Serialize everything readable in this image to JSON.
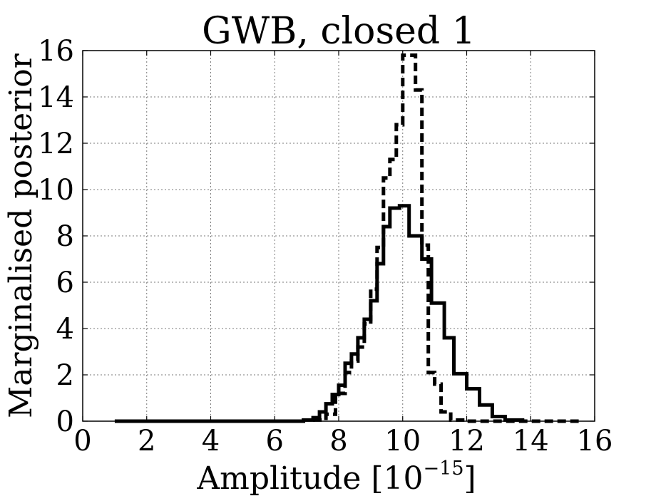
{
  "chart_data": {
    "type": "line",
    "title": "GWB, closed 1",
    "xlabel": "Amplitude [10",
    "xlabel_exponent": "−15",
    "xlabel_close": "]",
    "ylabel": "Marginalised posterior",
    "xlim": [
      0,
      16
    ],
    "ylim": [
      0,
      16
    ],
    "grid": true,
    "xticks": [
      0,
      2,
      4,
      6,
      8,
      10,
      12,
      14,
      16
    ],
    "yticks": [
      0,
      2,
      4,
      6,
      8,
      10,
      12,
      14,
      16
    ],
    "xtick_labels": [
      "0",
      "2",
      "4",
      "6",
      "8",
      "10",
      "12",
      "14",
      "16"
    ],
    "ytick_labels": [
      "0",
      "2",
      "4",
      "6",
      "8",
      "10",
      "12",
      "14",
      "16"
    ],
    "series": [
      {
        "style": "solid",
        "color": "#000000",
        "bin_edges": [
          1.0,
          6.9,
          7.2,
          7.4,
          7.6,
          7.8,
          8.0,
          8.2,
          8.4,
          8.6,
          8.8,
          9.0,
          9.2,
          9.4,
          9.6,
          9.9,
          10.2,
          10.6,
          10.9,
          11.3,
          11.6,
          12.0,
          12.4,
          12.8,
          13.2,
          13.8
        ],
        "values": [
          0.0,
          0.05,
          0.15,
          0.4,
          0.75,
          1.15,
          1.55,
          2.5,
          2.9,
          3.6,
          4.4,
          5.2,
          6.8,
          8.4,
          9.2,
          9.3,
          8.0,
          7.0,
          5.1,
          3.6,
          2.05,
          1.4,
          0.7,
          0.2,
          0.05
        ]
      },
      {
        "style": "dashed",
        "color": "#000000",
        "bin_edges": [
          7.2,
          7.6,
          7.9,
          8.2,
          8.4,
          8.6,
          8.8,
          9.0,
          9.2,
          9.4,
          9.6,
          9.8,
          10.0,
          10.2,
          10.4,
          10.6,
          10.8,
          11.0,
          11.2,
          11.5,
          12.0,
          15.5
        ],
        "values": [
          0.05,
          0.3,
          1.2,
          2.1,
          2.6,
          3.2,
          4.2,
          5.7,
          7.5,
          10.5,
          11.3,
          12.8,
          15.8,
          15.8,
          14.3,
          7.6,
          2.1,
          1.6,
          0.4,
          0.05,
          0.0
        ]
      }
    ]
  }
}
